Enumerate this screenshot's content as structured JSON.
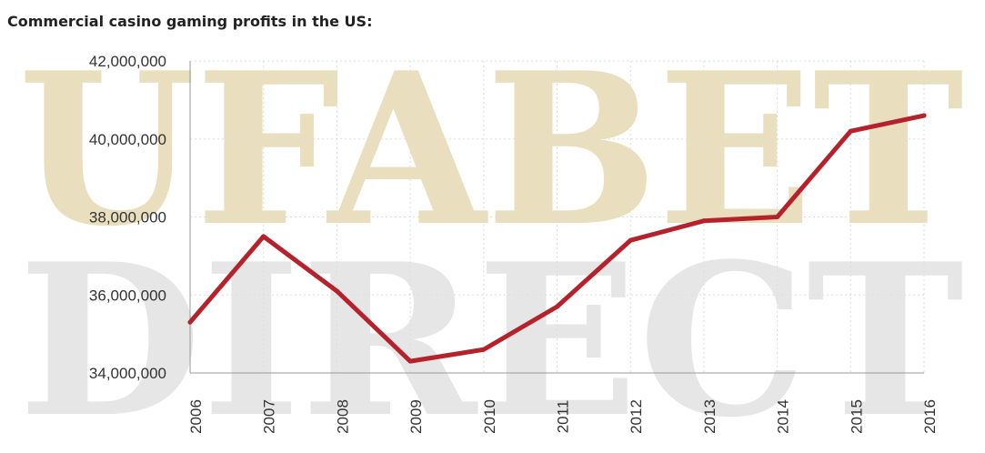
{
  "page": {
    "title": "Commercial casino gaming profits in the US:"
  },
  "watermark": {
    "line1": "UFABET",
    "line2": "DIRECT",
    "color_gold": "#d8c48a",
    "color_gray": "#d2d2d2"
  },
  "chart_data": {
    "type": "line",
    "title": "",
    "xlabel": "",
    "ylabel": "",
    "categories": [
      "2006",
      "2007",
      "2008",
      "2009",
      "2010",
      "2011",
      "2012",
      "2013",
      "2014",
      "2015",
      "2016"
    ],
    "series": [
      {
        "values": [
          35300000,
          37500000,
          36100000,
          34300000,
          34600000,
          35700000,
          37400000,
          37900000,
          38000000,
          40200000,
          40600000
        ],
        "color": "#b5222c"
      }
    ],
    "ylim": [
      34000000,
      42000000
    ],
    "yticks": [
      {
        "value": 34000000,
        "label": "34,000,000"
      },
      {
        "value": 36000000,
        "label": "36,000,000"
      },
      {
        "value": 38000000,
        "label": "38,000,000"
      },
      {
        "value": 40000000,
        "label": "40,000,000"
      },
      {
        "value": 42000000,
        "label": "42,000,000"
      }
    ],
    "grid": true,
    "legend": "none"
  }
}
